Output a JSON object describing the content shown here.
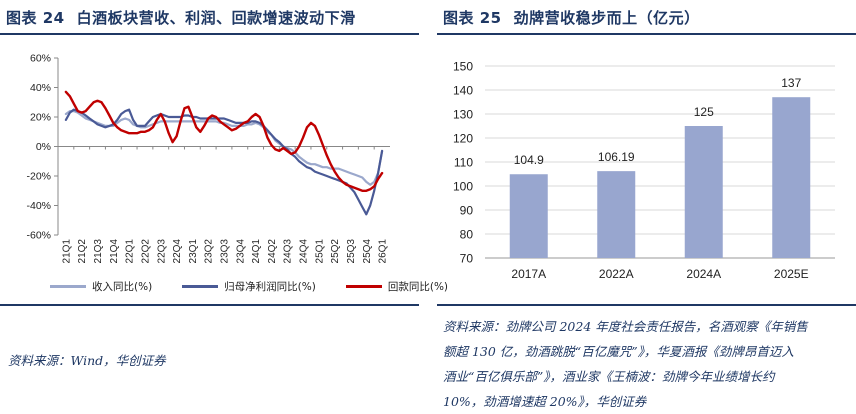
{
  "left": {
    "title_prefix": "图表 24",
    "title": "白酒板块营收、利润、回款增速波动下滑",
    "source": "资料来源：Wind，华创证券",
    "chart_data": {
      "type": "line",
      "title": "",
      "xlabel": "",
      "ylabel": "",
      "ylim": [
        -60,
        60
      ],
      "y_ticks": [
        "60%",
        "40%",
        "20%",
        "0%",
        "-20%",
        "-40%",
        "-60%"
      ],
      "y_tick_values": [
        60,
        40,
        20,
        0,
        -20,
        -40,
        -60
      ],
      "grid": false,
      "legend": "bottom",
      "categories": [
        "21Q1",
        "21Q2",
        "21Q3",
        "21Q4",
        "22Q1",
        "22Q2",
        "22Q3",
        "22Q4",
        "23Q1",
        "23Q2",
        "23Q3",
        "23Q4",
        "24Q1",
        "24Q2",
        "24Q3",
        "24Q4",
        "25Q1",
        "25Q2",
        "25Q3",
        "25Q4",
        "26Q1"
      ],
      "x": [
        0,
        0.25,
        0.5,
        0.75,
        1,
        1.25,
        1.5,
        1.75,
        2,
        2.25,
        2.5,
        2.75,
        3,
        3.25,
        3.5,
        3.75,
        4,
        4.25,
        4.5,
        4.75,
        5,
        5.25,
        5.5,
        5.75,
        6,
        6.25,
        6.5,
        6.75,
        7,
        7.25,
        7.5,
        7.75,
        8,
        8.25,
        8.5,
        8.75,
        9,
        9.25,
        9.5,
        9.75,
        10,
        10.25,
        10.5,
        10.75,
        11,
        11.25,
        11.5,
        11.75,
        12,
        12.25,
        12.5,
        12.75,
        13,
        13.25,
        13.5,
        13.75,
        14,
        14.25,
        14.5,
        14.75,
        15,
        15.25,
        15.5,
        15.75,
        16,
        16.25,
        16.5,
        16.75,
        17,
        17.25,
        17.5,
        17.75,
        18,
        18.25,
        18.5,
        18.75,
        19,
        19.25,
        19.5,
        19.75,
        20
      ],
      "series": [
        {
          "name": "收入同比(%)",
          "color": "#9ba8cc",
          "values": [
            22,
            24,
            24,
            23,
            21,
            19,
            18,
            17,
            16,
            15,
            14,
            14,
            14,
            16,
            18,
            19,
            18,
            15,
            14,
            13,
            13,
            14,
            15,
            16,
            17,
            17,
            17,
            17,
            17,
            17,
            17,
            17,
            17,
            17,
            17,
            17,
            17,
            17,
            17,
            16,
            16,
            15,
            14,
            14,
            14,
            14,
            15,
            15,
            16,
            15,
            13,
            10,
            8,
            4,
            2,
            0,
            -1,
            -2,
            -4,
            -7,
            -9,
            -11,
            -12,
            -12,
            -13,
            -14,
            -14,
            -15,
            -15,
            -15,
            -16,
            -17,
            -18,
            -19,
            -20,
            -21,
            -24,
            -26,
            -24,
            -18,
            -3
          ]
        },
        {
          "name": "归母净利润同比(%)",
          "color": "#4a5a96",
          "values": [
            18,
            23,
            25,
            24,
            23,
            21,
            19,
            17,
            15,
            14,
            13,
            14,
            15,
            18,
            22,
            24,
            25,
            18,
            14,
            14,
            14,
            17,
            20,
            21,
            22,
            21,
            20,
            20,
            20,
            20,
            21,
            21,
            20,
            20,
            19,
            19,
            19,
            19,
            19,
            19,
            19,
            18,
            17,
            16,
            16,
            16,
            16,
            17,
            17,
            16,
            14,
            11,
            8,
            5,
            3,
            0,
            -2,
            -5,
            -7,
            -10,
            -12,
            -14,
            -15,
            -17,
            -18,
            -19,
            -20,
            -21,
            -22,
            -23,
            -24,
            -25,
            -28,
            -31,
            -36,
            -41,
            -46,
            -40,
            -30,
            -18,
            -3
          ]
        },
        {
          "name": "回款同比(%)",
          "color": "#c00000",
          "values": [
            37,
            34,
            29,
            24,
            23,
            24,
            27,
            30,
            31,
            30,
            26,
            21,
            16,
            13,
            11,
            10,
            9,
            9,
            9,
            10,
            10,
            11,
            13,
            18,
            22,
            17,
            9,
            3,
            7,
            17,
            26,
            27,
            20,
            13,
            10,
            14,
            19,
            21,
            20,
            17,
            15,
            13,
            11,
            12,
            14,
            16,
            17,
            20,
            22,
            20,
            14,
            6,
            1,
            -2,
            -3,
            -1,
            -3,
            -5,
            -4,
            0,
            6,
            13,
            16,
            14,
            8,
            1,
            -6,
            -12,
            -17,
            -21,
            -24,
            -26,
            -27,
            -28,
            -29,
            -30,
            -30,
            -29,
            -27,
            -22,
            -18
          ]
        }
      ]
    }
  },
  "right": {
    "title_prefix": "图表 25",
    "title": "劲牌营收稳步而上（亿元）",
    "source_lines": [
      "资料来源：劲牌公司 2024 年度社会责任报告，名酒观察《年销售",
      "额超 130 亿，劲酒跳脱“百亿魔咒”》，华夏酒报《劲牌昂首迈入",
      "酒业“百亿俱乐部”》，酒业家《王楠波：劲牌今年业绩增长约",
      "10%，劲酒增速超 20%》，华创证券"
    ],
    "chart_data": {
      "type": "bar",
      "title": "",
      "xlabel": "",
      "ylabel": "",
      "ylim": [
        70,
        150
      ],
      "y_ticks": [
        "150",
        "140",
        "130",
        "120",
        "110",
        "100",
        "90",
        "80",
        "70"
      ],
      "y_tick_values": [
        150,
        140,
        130,
        120,
        110,
        100,
        90,
        80,
        70
      ],
      "grid": true,
      "categories": [
        "2017A",
        "2022A",
        "2024A",
        "2025E"
      ],
      "values": [
        104.9,
        106.19,
        125,
        137
      ],
      "data_labels": [
        "104.9",
        "106.19",
        "125",
        "137"
      ],
      "bar_color": "#98a6cf"
    }
  }
}
